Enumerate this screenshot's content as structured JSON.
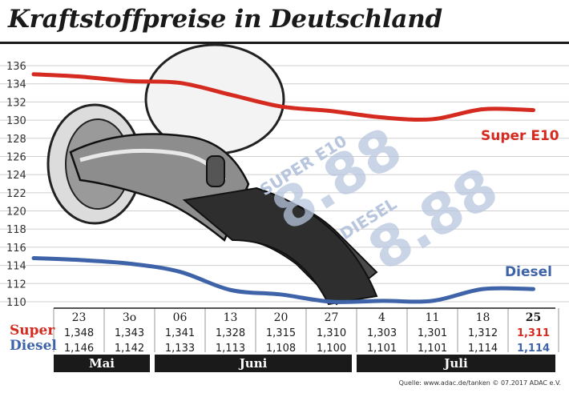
{
  "title": "Kraftstoffpreise in Deutschland",
  "source": "Quelle: www.adac.de/tanken  © 07.2017  ADAC e.V.",
  "row_labels": {
    "super": "Super",
    "diesel": "Diesel"
  },
  "months": [
    "Mai",
    "Juni",
    "Juli"
  ],
  "colors": {
    "super": "#d42a20",
    "diesel": "#3e63a8",
    "grid": "#cfcfcf",
    "dark": "#1a1a1a"
  },
  "chart_data": {
    "type": "line",
    "title": "Kraftstoffpreise in Deutschland",
    "ylim": [
      110,
      136
    ],
    "yticks": [
      110,
      112,
      114,
      116,
      118,
      120,
      122,
      124,
      126,
      128,
      130,
      132,
      134,
      136
    ],
    "categories": [
      "23",
      "3o",
      "06",
      "13",
      "20",
      "27",
      "4",
      "11",
      "18",
      "25"
    ],
    "grid": true,
    "series": [
      {
        "name": "Super E10",
        "key": "super",
        "values": [
          134.8,
          134.3,
          134.1,
          132.8,
          131.5,
          131.0,
          130.3,
          130.1,
          131.2,
          131.1
        ],
        "table": [
          "1,348",
          "1,343",
          "1,341",
          "1,328",
          "1,315",
          "1,310",
          "1,303",
          "1,301",
          "1,312",
          "1,311"
        ]
      },
      {
        "name": "Diesel",
        "key": "diesel",
        "values": [
          114.6,
          114.2,
          113.3,
          111.3,
          110.8,
          110.0,
          110.1,
          110.1,
          111.4,
          111.4
        ],
        "table": [
          "1,146",
          "1,142",
          "1,133",
          "1,113",
          "1,108",
          "1,100",
          "1,101",
          "1,101",
          "1,114",
          "1,114"
        ]
      }
    ]
  }
}
